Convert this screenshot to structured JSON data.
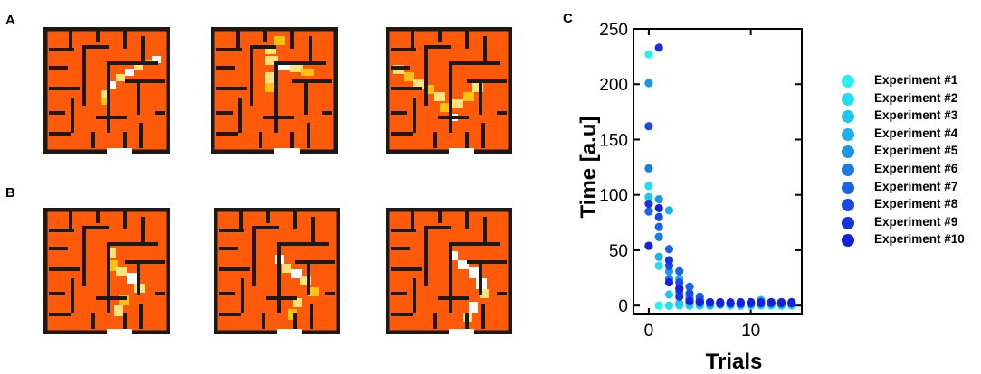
{
  "panels": {
    "a": "A",
    "b": "B",
    "c": "C"
  },
  "colors": {
    "maze_floor": "#ff5a0a",
    "maze_wall": "#1a1a1a",
    "trail_low": "#ffc20e",
    "trail_mid": "#ffe27a",
    "trail_high": "#ffffff"
  },
  "chart_data": {
    "type": "scatter",
    "title": "",
    "xlabel": "Trials",
    "ylabel": "Time [a.u]",
    "xlim": [
      -1.5,
      15
    ],
    "ylim": [
      -8,
      250
    ],
    "xticks": [
      0,
      10
    ],
    "yticks": [
      0,
      50,
      100,
      150,
      200,
      250
    ],
    "grid": false,
    "legend_position": "right",
    "series": [
      {
        "name": "Experiment #1",
        "color": "#2af0f0",
        "x": [
          0,
          1,
          2,
          3,
          4,
          5,
          6,
          7,
          8,
          9,
          10,
          11,
          12,
          13,
          14
        ],
        "y": [
          227,
          0,
          0,
          0,
          1,
          0,
          0,
          1,
          0,
          1,
          0,
          1,
          0,
          0,
          1
        ]
      },
      {
        "name": "Experiment #2",
        "color": "#22ddf0",
        "x": [
          0,
          1,
          2,
          3,
          4,
          5,
          6,
          7,
          8,
          9,
          10,
          11,
          12,
          13,
          14
        ],
        "y": [
          108,
          36,
          0,
          1,
          0,
          1,
          0,
          1,
          0,
          0,
          1,
          0,
          1,
          0,
          0
        ]
      },
      {
        "name": "Experiment #3",
        "color": "#1fc8ee",
        "x": [
          0,
          1,
          2,
          3,
          4,
          5,
          6,
          7,
          8,
          9,
          10,
          11,
          12,
          13,
          14
        ],
        "y": [
          98,
          62,
          10,
          2,
          1,
          1,
          0,
          1,
          1,
          0,
          1,
          3,
          1,
          1,
          1
        ]
      },
      {
        "name": "Experiment #4",
        "color": "#1cb2ec",
        "x": [
          0,
          1,
          2,
          3,
          4,
          5,
          6,
          7,
          8,
          9,
          10,
          11,
          12,
          13,
          14
        ],
        "y": [
          54,
          44,
          86,
          24,
          3,
          1,
          1,
          1,
          2,
          1,
          1,
          5,
          2,
          2,
          2
        ]
      },
      {
        "name": "Experiment #5",
        "color": "#1a98e8",
        "x": [
          0,
          1,
          2,
          3,
          4,
          5,
          6,
          7,
          8,
          9,
          10,
          11,
          12,
          13,
          14
        ],
        "y": [
          201,
          96,
          31,
          16,
          8,
          4,
          2,
          1,
          2,
          2,
          2,
          3,
          2,
          2,
          2
        ]
      },
      {
        "name": "Experiment #6",
        "color": "#1a7ee6",
        "x": [
          0,
          1,
          2,
          3,
          4,
          5,
          6,
          7,
          8,
          9,
          10,
          11,
          12,
          13,
          14
        ],
        "y": [
          124,
          62,
          24,
          12,
          6,
          3,
          2,
          2,
          2,
          2,
          3,
          2,
          2,
          2,
          2
        ]
      },
      {
        "name": "Experiment #7",
        "color": "#1a64e6",
        "x": [
          0,
          1,
          2,
          3,
          4,
          5,
          6,
          7,
          8,
          9,
          10,
          11,
          12,
          13,
          14
        ],
        "y": [
          85,
          71,
          51,
          31,
          17,
          8,
          3,
          2,
          2,
          3,
          2,
          2,
          3,
          2,
          2
        ]
      },
      {
        "name": "Experiment #8",
        "color": "#1a4ae6",
        "x": [
          0,
          1,
          2,
          3,
          4,
          5,
          6,
          7,
          8,
          9,
          10,
          11,
          12,
          13,
          14
        ],
        "y": [
          162,
          80,
          36,
          21,
          11,
          5,
          3,
          3,
          2,
          2,
          3,
          3,
          2,
          3,
          3
        ]
      },
      {
        "name": "Experiment #9",
        "color": "#1832e6",
        "x": [
          0,
          1,
          2,
          3,
          4,
          5,
          6,
          7,
          8,
          9,
          10,
          11,
          12,
          13,
          14
        ],
        "y": [
          92,
          233,
          41,
          8,
          4,
          3,
          3,
          2,
          3,
          3,
          2,
          2,
          3,
          2,
          2
        ]
      },
      {
        "name": "Experiment #10",
        "color": "#1520e0",
        "x": [
          0,
          1,
          2,
          3,
          4,
          5,
          6,
          7,
          8,
          9,
          10,
          11,
          12,
          13,
          14
        ],
        "y": [
          54,
          88,
          21,
          15,
          4,
          3,
          3,
          3,
          2,
          2,
          3,
          3,
          3,
          3,
          3
        ]
      }
    ]
  }
}
